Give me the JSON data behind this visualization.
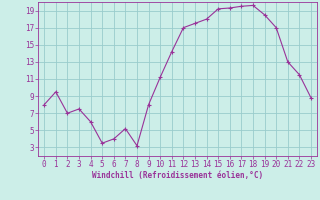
{
  "x": [
    0,
    1,
    2,
    3,
    4,
    5,
    6,
    7,
    8,
    9,
    10,
    11,
    12,
    13,
    14,
    15,
    16,
    17,
    18,
    19,
    20,
    21,
    22,
    23
  ],
  "y": [
    8.0,
    9.5,
    7.0,
    7.5,
    6.0,
    3.5,
    4.0,
    5.2,
    3.2,
    8.0,
    11.2,
    14.2,
    17.0,
    17.5,
    18.0,
    19.2,
    19.3,
    19.5,
    19.6,
    18.5,
    17.0,
    13.0,
    11.5,
    8.8
  ],
  "line_color": "#993399",
  "marker": "+",
  "marker_size": 3,
  "bg_color": "#cceee8",
  "grid_color": "#99cccc",
  "xlabel": "Windchill (Refroidissement éolien,°C)",
  "xlabel_color": "#993399",
  "tick_color": "#993399",
  "ylim": [
    2,
    20
  ],
  "xlim": [
    -0.5,
    23.5
  ],
  "yticks": [
    3,
    5,
    7,
    9,
    11,
    13,
    15,
    17,
    19
  ],
  "xticks": [
    0,
    1,
    2,
    3,
    4,
    5,
    6,
    7,
    8,
    9,
    10,
    11,
    12,
    13,
    14,
    15,
    16,
    17,
    18,
    19,
    20,
    21,
    22,
    23
  ],
  "tick_fontsize": 5.5,
  "xlabel_fontsize": 5.5
}
